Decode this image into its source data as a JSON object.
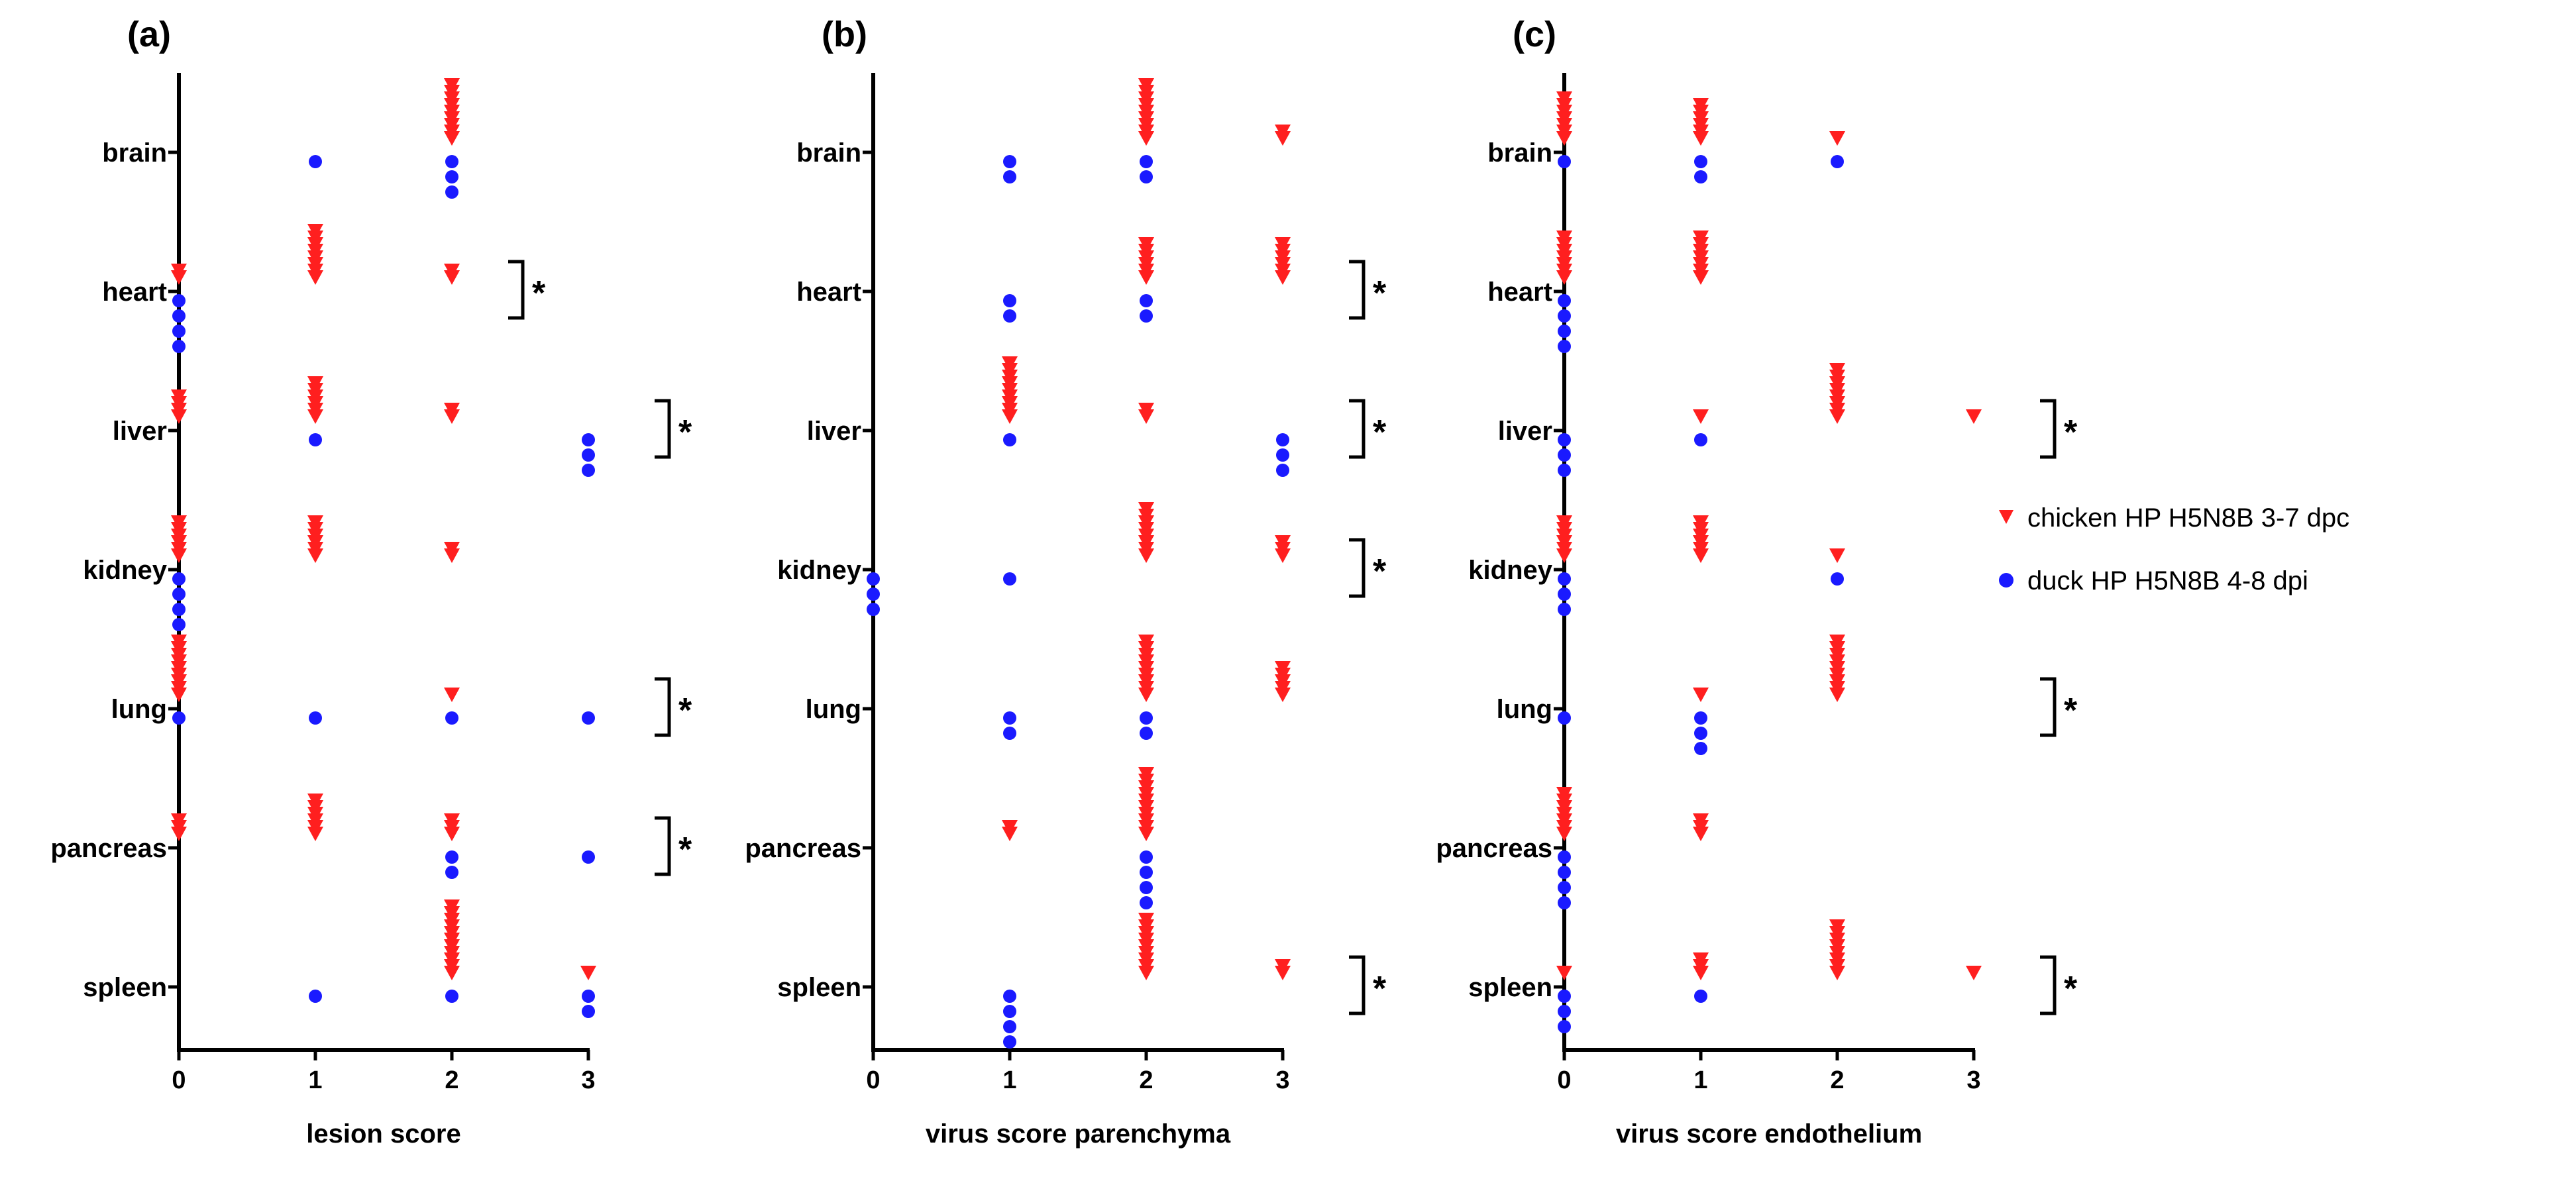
{
  "legend": {
    "chicken": {
      "label": "chicken HP H5N8B 3-7 dpc",
      "color": "#ff1f1f",
      "marker": "triangle-down"
    },
    "duck": {
      "label": "duck HP H5N8B 4-8 dpi",
      "color": "#1a1aff",
      "marker": "circle"
    }
  },
  "chart_data": [
    {
      "type": "scatter",
      "panel": "(a)",
      "xlabel": "lesion score",
      "xticks": [
        "0",
        "1",
        "2",
        "3"
      ],
      "xlim": [
        0,
        3
      ],
      "categories": [
        "brain",
        "heart",
        "liver",
        "kidney",
        "lung",
        "pancreas",
        "spleen"
      ],
      "chicken_counts": [
        [
          0,
          0,
          9,
          0
        ],
        [
          2,
          8,
          2,
          0
        ],
        [
          4,
          6,
          2,
          0
        ],
        [
          6,
          6,
          2,
          0
        ],
        [
          9,
          0,
          1,
          0
        ],
        [
          3,
          6,
          3,
          0
        ],
        [
          0,
          0,
          11,
          1
        ]
      ],
      "duck_counts": [
        [
          0,
          1,
          3,
          0
        ],
        [
          4,
          0,
          0,
          0
        ],
        [
          0,
          1,
          0,
          3
        ],
        [
          4,
          0,
          0,
          0
        ],
        [
          1,
          1,
          1,
          1
        ],
        [
          0,
          0,
          2,
          1
        ],
        [
          0,
          1,
          1,
          2
        ]
      ],
      "significance": [
        "",
        "*",
        "*",
        "",
        "*",
        "*",
        ""
      ]
    },
    {
      "type": "scatter",
      "panel": "(b)",
      "xlabel": "virus score parenchyma",
      "xticks": [
        "0",
        "1",
        "2",
        "3"
      ],
      "xlim": [
        0,
        3
      ],
      "categories": [
        "brain",
        "heart",
        "liver",
        "kidney",
        "lung",
        "pancreas",
        "spleen"
      ],
      "chicken_counts": [
        [
          0,
          0,
          9,
          2
        ],
        [
          0,
          0,
          6,
          6
        ],
        [
          0,
          9,
          2,
          0
        ],
        [
          0,
          0,
          8,
          3
        ],
        [
          0,
          0,
          9,
          5
        ],
        [
          0,
          2,
          10,
          0
        ],
        [
          0,
          0,
          9,
          2
        ]
      ],
      "duck_counts": [
        [
          0,
          2,
          2,
          0
        ],
        [
          0,
          2,
          2,
          0
        ],
        [
          0,
          1,
          0,
          3
        ],
        [
          3,
          1,
          0,
          0
        ],
        [
          0,
          2,
          2,
          0
        ],
        [
          0,
          0,
          4,
          0
        ],
        [
          0,
          4,
          0,
          0
        ]
      ],
      "significance": [
        "",
        "*",
        "*",
        "*",
        "",
        "",
        "*"
      ]
    },
    {
      "type": "scatter",
      "panel": "(c)",
      "xlabel": "virus score endothelium",
      "xticks": [
        "0",
        "1",
        "2",
        "3"
      ],
      "xlim": [
        0,
        3
      ],
      "categories": [
        "brain",
        "heart",
        "liver",
        "kidney",
        "lung",
        "pancreas",
        "spleen"
      ],
      "chicken_counts": [
        [
          7,
          6,
          1,
          0
        ],
        [
          7,
          7,
          0,
          0
        ],
        [
          0,
          1,
          8,
          1
        ],
        [
          6,
          6,
          1,
          0
        ],
        [
          0,
          1,
          9,
          0
        ],
        [
          7,
          3,
          0,
          0
        ],
        [
          1,
          3,
          8,
          1
        ]
      ],
      "duck_counts": [
        [
          1,
          2,
          1,
          0
        ],
        [
          4,
          0,
          0,
          0
        ],
        [
          3,
          1,
          0,
          0
        ],
        [
          3,
          0,
          1,
          0
        ],
        [
          1,
          3,
          0,
          0
        ],
        [
          4,
          0,
          0,
          0
        ],
        [
          3,
          1,
          0,
          0
        ]
      ],
      "significance": [
        "",
        "",
        "*",
        "",
        "*",
        "",
        "*"
      ]
    }
  ]
}
